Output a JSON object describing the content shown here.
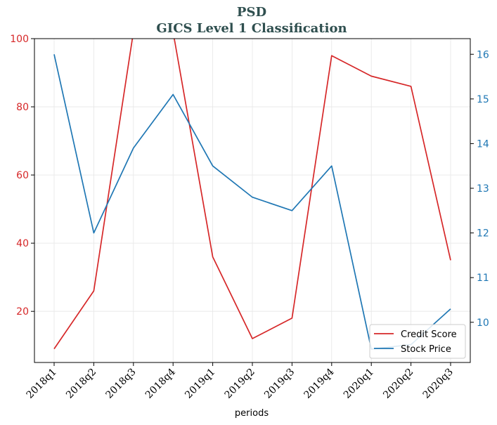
{
  "chart_data": {
    "type": "line",
    "title": "PSD",
    "subtitle": "GICS Level 1 Classification",
    "xlabel": "periods",
    "categories": [
      "2018q1",
      "2018q2",
      "2018q3",
      "2018q4",
      "2019q1",
      "2019q2",
      "2019q3",
      "2019q4",
      "2020q1",
      "2020q2",
      "2020q3"
    ],
    "series": [
      {
        "name": "Credit Score",
        "axis": "left",
        "color": "#d62728",
        "values": [
          9,
          26,
          102,
          102,
          36,
          12,
          18,
          95,
          89,
          86,
          35
        ]
      },
      {
        "name": "Stock Price",
        "axis": "right",
        "color": "#1f77b4",
        "values": [
          16.0,
          12.0,
          13.9,
          15.1,
          13.5,
          12.8,
          12.5,
          13.5,
          9.4,
          9.5,
          10.3
        ]
      }
    ],
    "y_left": {
      "ylim": [
        5,
        100
      ],
      "ticks": [
        20,
        40,
        60,
        80,
        100
      ],
      "color": "#d62728"
    },
    "y_right": {
      "ylim": [
        9.1,
        16.35
      ],
      "ticks": [
        10,
        11,
        12,
        13,
        14,
        15,
        16
      ],
      "color": "#1f77b4"
    },
    "grid": true,
    "legend": "bottom-right",
    "title_color": "#2f4f4f"
  }
}
